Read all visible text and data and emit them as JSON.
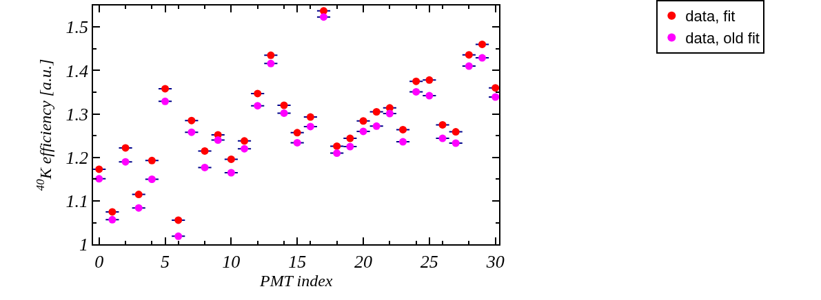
{
  "chart_data": {
    "type": "scatter",
    "xlabel": "PMT index",
    "ylabel": "$^{40}$K efficiency [a.u.]",
    "xlim": [
      -0.45,
      30.3
    ],
    "xticks": [
      0,
      5,
      10,
      15,
      20,
      25,
      30
    ],
    "ylim": [
      1,
      1.55
    ],
    "yticks": [
      1,
      1.1,
      1.2,
      1.3,
      1.4,
      1.5
    ],
    "x": [
      0,
      1,
      2,
      3,
      4,
      5,
      6,
      7,
      8,
      9,
      10,
      11,
      12,
      13,
      14,
      15,
      16,
      17,
      18,
      19,
      20,
      21,
      22,
      23,
      24,
      25,
      26,
      27,
      28,
      29,
      30
    ],
    "marker": "circle",
    "legend": "top right",
    "series": [
      {
        "name": "data, fit",
        "color": "#ff0000",
        "xerrors": [
          0.5,
          0.5,
          0.5,
          0.5,
          0.5,
          0.5,
          0.5,
          0.5,
          0.5,
          0.5,
          0.5,
          0.5,
          0.5,
          0.5,
          0.5,
          0.5,
          0.5,
          0.5,
          0.5,
          0.5,
          0.5,
          0.5,
          0.5,
          0.5,
          0.5,
          0.5,
          0.5,
          0.5,
          0.5,
          0.5,
          0.5
        ],
        "values": [
          1.173,
          1.075,
          1.222,
          1.115,
          1.193,
          1.358,
          1.056,
          1.285,
          1.215,
          1.252,
          1.196,
          1.238,
          1.347,
          1.435,
          1.32,
          1.257,
          1.293,
          1.537,
          1.226,
          1.244,
          1.284,
          1.305,
          1.314,
          1.264,
          1.375,
          1.378,
          1.275,
          1.259,
          1.436,
          1.46,
          1.36
        ]
      },
      {
        "name": "data, old fit",
        "color": "#ff00ff",
        "xerrors": [
          0.5,
          0.5,
          0.5,
          0.5,
          0.5,
          0.5,
          0.5,
          0.5,
          0.5,
          0.5,
          0.5,
          0.5,
          0.5,
          0.5,
          0.5,
          0.5,
          0.5,
          0.5,
          0.5,
          0.5,
          0.5,
          0.5,
          0.5,
          0.5,
          0.5,
          0.5,
          0.5,
          0.5,
          0.5,
          0.5,
          0.5
        ],
        "values": [
          1.151,
          1.057,
          1.19,
          1.084,
          1.15,
          1.329,
          1.019,
          1.258,
          1.177,
          1.24,
          1.165,
          1.22,
          1.319,
          1.416,
          1.302,
          1.234,
          1.271,
          1.523,
          1.21,
          1.225,
          1.26,
          1.272,
          1.301,
          1.236,
          1.351,
          1.342,
          1.244,
          1.233,
          1.41,
          1.429,
          1.339
        ]
      }
    ]
  }
}
